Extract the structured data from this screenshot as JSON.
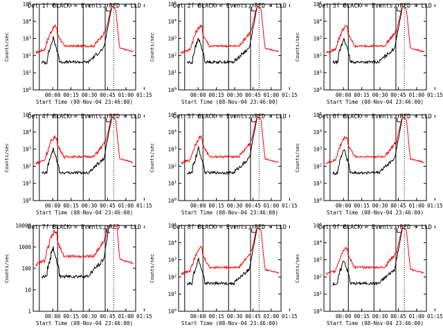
{
  "chart_data": [
    {
      "type": "line",
      "title": "Det 1f BLACK = Events, RED = LLD",
      "xlabel": "Start Time (08-Nov-04 23:46:00)",
      "ylabel": "Counts/sec",
      "ylim": [
        1,
        100000
      ],
      "y_scale": "log",
      "y_tick_style": "exp",
      "y_ticks": [
        "10^0",
        "10^1",
        "10^2",
        "10^3",
        "10^4",
        "10^5"
      ],
      "x_ticks": [
        "00:00",
        "00:15",
        "00:30",
        "00:45",
        "01:00",
        "01:15"
      ],
      "series": [
        {
          "color": "#000000",
          "values": []
        },
        {
          "color": "#ff0000",
          "values": []
        }
      ]
    },
    {
      "type": "line",
      "title": "Det 2f BLACK = Events, RED = LLD",
      "xlabel": "Start Time (08-Nov-04 23:46:00)",
      "ylabel": "Counts/sec",
      "ylim": [
        1,
        100000
      ],
      "y_scale": "log",
      "y_tick_style": "exp",
      "y_ticks": [
        "10^0",
        "10^1",
        "10^2",
        "10^3",
        "10^4",
        "10^5"
      ],
      "x_ticks": [
        "00:00",
        "00:15",
        "00:30",
        "00:45",
        "01:00",
        "01:15"
      ],
      "series": [
        {
          "color": "#000000",
          "values": []
        },
        {
          "color": "#ff0000",
          "values": []
        }
      ]
    },
    {
      "type": "line",
      "title": "Det 3f BLACK = Events, RED = LLD",
      "xlabel": "Start Time (08-Nov-04 23:46:00)",
      "ylabel": "Counts/sec",
      "ylim": [
        1,
        100000
      ],
      "y_scale": "log",
      "y_tick_style": "exp",
      "y_ticks": [
        "10^0",
        "10^1",
        "10^2",
        "10^3",
        "10^4",
        "10^5"
      ],
      "x_ticks": [
        "00:00",
        "00:15",
        "00:30",
        "00:45",
        "01:00",
        "01:15"
      ],
      "series": [
        {
          "color": "#000000",
          "values": []
        },
        {
          "color": "#ff0000",
          "values": []
        }
      ]
    },
    {
      "type": "line",
      "title": "Det 4f BLACK = Events, RED = LLD",
      "xlabel": "Start Time (08-Nov-04 23:46:00)",
      "ylabel": "Counts/sec",
      "ylim": [
        1,
        100000
      ],
      "y_scale": "log",
      "y_tick_style": "exp",
      "y_ticks": [
        "10^0",
        "10^1",
        "10^2",
        "10^3",
        "10^4",
        "10^5"
      ],
      "x_ticks": [
        "00:00",
        "00:15",
        "00:30",
        "00:45",
        "01:00",
        "01:15"
      ],
      "series": [
        {
          "color": "#000000",
          "values": []
        },
        {
          "color": "#ff0000",
          "values": []
        }
      ]
    },
    {
      "type": "line",
      "title": "Det 5f BLACK = Events, RED = LLD",
      "xlabel": "Start Time (08-Nov-04 23:46:00)",
      "ylabel": "Counts/sec",
      "ylim": [
        1,
        100000
      ],
      "y_scale": "log",
      "y_tick_style": "exp",
      "y_ticks": [
        "10^0",
        "10^1",
        "10^2",
        "10^3",
        "10^4",
        "10^5"
      ],
      "x_ticks": [
        "00:00",
        "00:15",
        "00:30",
        "00:45",
        "01:00",
        "01:15"
      ],
      "series": [
        {
          "color": "#000000",
          "values": []
        },
        {
          "color": "#ff0000",
          "values": []
        }
      ]
    },
    {
      "type": "line",
      "title": "Det 6f BLACK = Events, RED = LLD",
      "xlabel": "Start Time (08-Nov-04 23:46:00)",
      "ylabel": "Counts/sec",
      "ylim": [
        1,
        100000
      ],
      "y_scale": "log",
      "y_tick_style": "exp",
      "y_ticks": [
        "10^0",
        "10^1",
        "10^2",
        "10^3",
        "10^4",
        "10^5"
      ],
      "x_ticks": [
        "00:00",
        "00:15",
        "00:30",
        "00:45",
        "01:00",
        "01:15"
      ],
      "series": [
        {
          "color": "#000000",
          "values": []
        },
        {
          "color": "#ff0000",
          "values": []
        }
      ]
    },
    {
      "type": "line",
      "title": "Det 7f BLACK = Events, RED = LLD",
      "xlabel": "Start Time (08-Nov-04 23:46:00)",
      "ylabel": "Counts/sec",
      "ylim": [
        1,
        10000
      ],
      "y_scale": "log",
      "y_tick_style": "plain",
      "y_ticks": [
        "1",
        "10",
        "100",
        "1000",
        "10000"
      ],
      "x_ticks": [
        "00:00",
        "00:15",
        "00:30",
        "00:45",
        "01:00",
        "01:15"
      ],
      "series": [
        {
          "color": "#000000",
          "values": []
        },
        {
          "color": "#ff0000",
          "values": []
        }
      ]
    },
    {
      "type": "line",
      "title": "Det 8f BLACK = Events, RED = LLD",
      "xlabel": "Start Time (08-Nov-04 23:46:00)",
      "ylabel": "Counts/sec",
      "ylim": [
        1,
        100000
      ],
      "y_scale": "log",
      "y_tick_style": "exp",
      "y_ticks": [
        "10^0",
        "10^1",
        "10^2",
        "10^3",
        "10^4",
        "10^5"
      ],
      "x_ticks": [
        "00:00",
        "00:15",
        "00:30",
        "00:45",
        "01:00",
        "01:15"
      ],
      "series": [
        {
          "color": "#000000",
          "values": []
        },
        {
          "color": "#ff0000",
          "values": []
        }
      ]
    },
    {
      "type": "line",
      "title": "Det 9f BLACK = Events, RED = LLD",
      "xlabel": "Start Time (08-Nov-04 23:46:00)",
      "ylabel": "Counts/sec",
      "ylim": [
        1,
        100000
      ],
      "y_scale": "log",
      "y_tick_style": "exp",
      "y_ticks": [
        "10^0",
        "10^1",
        "10^2",
        "10^3",
        "10^4",
        "10^5"
      ],
      "x_ticks": [
        "00:00",
        "00:15",
        "00:30",
        "00:45",
        "01:00",
        "01:15"
      ],
      "series": [
        {
          "color": "#000000",
          "values": []
        },
        {
          "color": "#ff0000",
          "values": []
        }
      ]
    }
  ]
}
